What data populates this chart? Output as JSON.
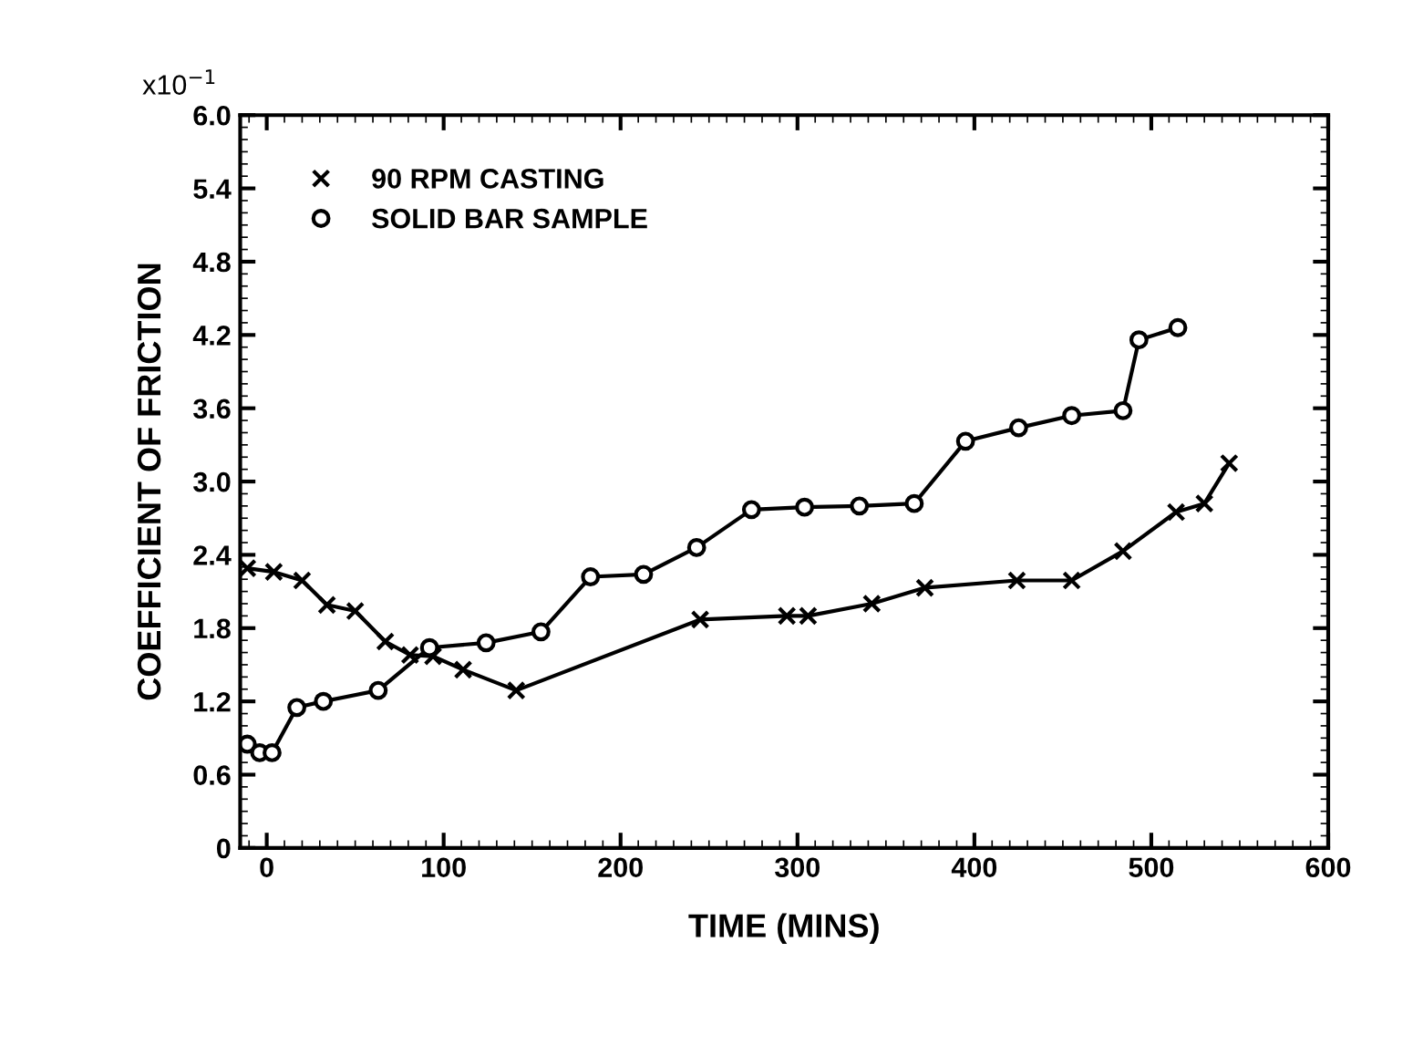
{
  "chart_data": {
    "type": "line",
    "xlabel": "TIME (MINS)",
    "ylabel": "COEFFICIENT OF FRICTION",
    "annotations": [
      "x10$^{−1}$"
    ],
    "xlim": [
      -15,
      600
    ],
    "xticks": [
      0,
      100,
      200,
      300,
      400,
      500,
      600
    ],
    "ylim": [
      0,
      6
    ],
    "yticks": [
      0,
      {
        "value": 0.6,
        "label": "0.6"
      },
      {
        "value": 1.2,
        "label": "1.2"
      },
      {
        "value": 1.8,
        "label": "1.8"
      },
      {
        "value": 2.4,
        "label": "2.4"
      },
      {
        "value": 3.0,
        "label": "3.0"
      },
      {
        "value": 3.6,
        "label": "3.6"
      },
      {
        "value": 4.2,
        "label": "4.2"
      },
      {
        "value": 4.8,
        "label": "4.8"
      },
      {
        "value": 5.4,
        "label": "5.4"
      },
      {
        "value": 6.0,
        "label": "6.0"
      }
    ],
    "grid": false,
    "legend": "top left",
    "series": [
      {
        "name": "90 RPM CASTING",
        "color": "#000000",
        "marker": "cross",
        "x": [
          -11,
          4,
          20,
          34,
          50,
          67,
          81,
          94,
          111,
          141,
          245,
          294,
          306,
          342,
          372,
          424,
          455,
          484,
          514,
          530,
          544
        ],
        "values": [
          2.29,
          2.26,
          2.19,
          1.99,
          1.94,
          1.69,
          1.58,
          1.57,
          1.46,
          1.29,
          1.87,
          1.9,
          1.9,
          2.0,
          2.13,
          2.19,
          2.19,
          2.43,
          2.75,
          2.82,
          3.15
        ]
      },
      {
        "name": "SOLID BAR SAMPLE",
        "color": "#000000",
        "marker": "circle",
        "x": [
          -11,
          -4,
          3,
          17,
          32,
          63,
          92,
          124,
          155,
          183,
          213,
          243,
          274,
          304,
          335,
          366,
          395,
          425,
          455,
          484,
          493,
          515
        ],
        "values": [
          0.85,
          0.78,
          0.78,
          1.15,
          1.2,
          1.29,
          1.64,
          1.68,
          1.77,
          2.22,
          2.24,
          2.46,
          2.77,
          2.79,
          2.8,
          2.82,
          3.33,
          3.44,
          3.54,
          3.58,
          4.16,
          4.26
        ]
      }
    ]
  }
}
